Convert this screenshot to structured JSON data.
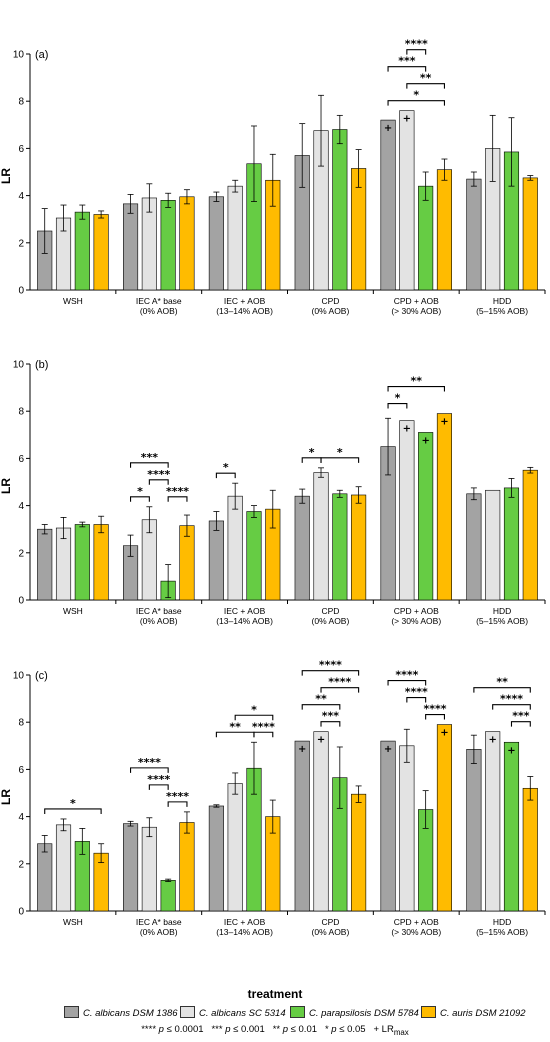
{
  "colors": {
    "series": [
      "#a3a3a3",
      "#e3e3e3",
      "#66cc44",
      "#ffbb00"
    ]
  },
  "x_axis_title": "treatment",
  "legend": [
    {
      "name": "C. albicans DSM 1386",
      "color": "#a3a3a3"
    },
    {
      "name": "C. albicans SC 5314",
      "color": "#e3e3e3"
    },
    {
      "name": "C. parapsilosis DSM 5784",
      "color": "#66cc44"
    },
    {
      "name": "C. auris DSM 21092",
      "color": "#ffbb00"
    }
  ],
  "significance_legend": {
    "s4": "**** ",
    "s4_p": "p",
    "s4_v": " ≤ 0.0001",
    "s3": "*** ",
    "s3_p": "p",
    "s3_v": " ≤ 0.001",
    "s2": "** ",
    "s2_p": "p",
    "s2_v": " ≤ 0.01",
    "s1": "* ",
    "s1_p": "p",
    "s1_v": " ≤ 0.05",
    "lr": "+ LR",
    "lr_sub": "max"
  },
  "chart_data": [
    {
      "panel": "(a)",
      "type": "bar",
      "ylabel": "LR",
      "ylim": [
        0,
        10
      ],
      "yticks": [
        0,
        2,
        4,
        6,
        8,
        10
      ],
      "categories": [
        [
          "WSH"
        ],
        [
          "IEC A* base",
          "(0% AOB)"
        ],
        [
          "IEC + AOB",
          "(13–14% AOB)"
        ],
        [
          "CPD",
          "(0% AOB)"
        ],
        [
          "CPD + AOB",
          "(> 30% AOB)"
        ],
        [
          "HDD",
          "(5–15% AOB)"
        ]
      ],
      "series": [
        {
          "name": "C. albicans DSM 1386",
          "values": [
            2.5,
            3.65,
            3.95,
            5.7,
            7.2,
            4.7
          ],
          "errors": [
            0.95,
            0.4,
            0.2,
            1.35,
            0.0,
            0.3
          ]
        },
        {
          "name": "C. albicans SC 5314",
          "values": [
            3.05,
            3.9,
            4.4,
            6.75,
            7.6,
            6.0
          ],
          "errors": [
            0.55,
            0.6,
            0.25,
            1.5,
            0.0,
            1.4
          ]
        },
        {
          "name": "C. parapsilosis DSM 5784",
          "values": [
            3.3,
            3.8,
            5.35,
            6.8,
            4.4,
            5.85
          ],
          "errors": [
            0.3,
            0.3,
            1.6,
            0.6,
            0.6,
            1.45
          ]
        },
        {
          "name": "C. auris DSM 21092",
          "values": [
            3.2,
            3.95,
            4.65,
            5.15,
            5.1,
            4.75
          ],
          "errors": [
            0.15,
            0.3,
            1.1,
            0.8,
            0.45,
            0.1
          ]
        }
      ],
      "lr_max": [
        [
          4,
          0
        ],
        [
          4,
          1
        ]
      ],
      "brackets": [
        {
          "group": 4,
          "from": 0,
          "to": 3,
          "level": 0,
          "label": "*"
        },
        {
          "group": 4,
          "from": 1,
          "to": 3,
          "level": 1,
          "label": "**"
        },
        {
          "group": 4,
          "from": 0,
          "to": 2,
          "level": 2,
          "label": "***"
        },
        {
          "group": 4,
          "from": 1,
          "to": 2,
          "level": 3,
          "label": "****"
        }
      ]
    },
    {
      "panel": "(b)",
      "type": "bar",
      "ylabel": "LR",
      "ylim": [
        0,
        10
      ],
      "yticks": [
        0,
        2,
        4,
        6,
        8,
        10
      ],
      "categories": [
        [
          "WSH"
        ],
        [
          "IEC A* base",
          "(0% AOB)"
        ],
        [
          "IEC + AOB",
          "(13–14% AOB)"
        ],
        [
          "CPD",
          "(0% AOB)"
        ],
        [
          "CPD + AOB",
          "(> 30% AOB)"
        ],
        [
          "HDD",
          "(5–15% AOB)"
        ]
      ],
      "series": [
        {
          "name": "C. albicans DSM 1386",
          "values": [
            3.0,
            2.3,
            3.35,
            4.4,
            6.5,
            4.5
          ],
          "errors": [
            0.2,
            0.45,
            0.4,
            0.3,
            1.2,
            0.25
          ]
        },
        {
          "name": "C. albicans SC 5314",
          "values": [
            3.05,
            3.4,
            4.4,
            5.4,
            7.6,
            4.65
          ],
          "errors": [
            0.45,
            0.55,
            0.55,
            0.2,
            0.0,
            0.0
          ]
        },
        {
          "name": "C. parapsilosis DSM 5784",
          "values": [
            3.2,
            0.8,
            3.75,
            4.5,
            7.1,
            4.75
          ],
          "errors": [
            0.1,
            0.7,
            0.25,
            0.15,
            0.0,
            0.4
          ]
        },
        {
          "name": "C. auris DSM 21092",
          "values": [
            3.2,
            3.15,
            3.85,
            4.45,
            7.9,
            5.5
          ],
          "errors": [
            0.35,
            0.45,
            0.8,
            0.35,
            0.0,
            0.12
          ]
        }
      ],
      "lr_max": [
        [
          4,
          1
        ],
        [
          4,
          2
        ],
        [
          4,
          3
        ]
      ],
      "brackets": [
        {
          "group": 1,
          "from": 0,
          "to": 1,
          "level": 0,
          "label": "*"
        },
        {
          "group": 1,
          "from": 2,
          "to": 3,
          "level": 0,
          "label": "****"
        },
        {
          "group": 1,
          "from": 1,
          "to": 2,
          "level": 1,
          "label": "****"
        },
        {
          "group": 1,
          "from": 0,
          "to": 2,
          "level": 2,
          "label": "***"
        },
        {
          "group": 2,
          "from": 0,
          "to": 1,
          "level": 0,
          "label": "*"
        },
        {
          "group": 3,
          "from": 0,
          "to": 1,
          "level": 0,
          "label": "*"
        },
        {
          "group": 3,
          "from": 1,
          "to": 3,
          "level": 0,
          "label": "*"
        },
        {
          "group": 4,
          "from": 0,
          "to": 1,
          "level": 0,
          "label": "*"
        },
        {
          "group": 4,
          "from": 0,
          "to": 3,
          "level": 1,
          "label": "**"
        }
      ]
    },
    {
      "panel": "(c)",
      "type": "bar",
      "ylabel": "LR",
      "ylim": [
        0,
        10
      ],
      "yticks": [
        0,
        2,
        4,
        6,
        8,
        10
      ],
      "categories": [
        [
          "WSH"
        ],
        [
          "IEC A* base",
          "(0% AOB)"
        ],
        [
          "IEC + AOB",
          "(13–14% AOB)"
        ],
        [
          "CPD",
          "(0% AOB)"
        ],
        [
          "CPD + AOB",
          "(> 30% AOB)"
        ],
        [
          "HDD",
          "(5–15% AOB)"
        ]
      ],
      "series": [
        {
          "name": "C. albicans DSM 1386",
          "values": [
            2.85,
            3.7,
            4.45,
            7.2,
            7.2,
            6.85
          ],
          "errors": [
            0.35,
            0.1,
            0.05,
            0.0,
            0.0,
            0.6
          ]
        },
        {
          "name": "C. albicans SC 5314",
          "values": [
            3.65,
            3.55,
            5.4,
            7.6,
            7.0,
            7.6
          ],
          "errors": [
            0.25,
            0.4,
            0.45,
            0.0,
            0.7,
            0.0
          ]
        },
        {
          "name": "C. parapsilosis DSM 5784",
          "values": [
            2.95,
            1.3,
            6.05,
            5.65,
            4.3,
            7.15
          ],
          "errors": [
            0.55,
            0.05,
            1.1,
            1.3,
            0.8,
            0.0
          ]
        },
        {
          "name": "C. auris DSM 21092",
          "values": [
            2.45,
            3.75,
            4.0,
            4.95,
            7.9,
            5.2
          ],
          "errors": [
            0.4,
            0.45,
            0.7,
            0.35,
            0.0,
            0.5
          ]
        }
      ],
      "lr_max": [
        [
          3,
          0
        ],
        [
          3,
          1
        ],
        [
          4,
          0
        ],
        [
          4,
          3
        ],
        [
          5,
          1
        ],
        [
          5,
          2
        ]
      ],
      "brackets": [
        {
          "group": 0,
          "from": 0,
          "to": 3,
          "level": 0,
          "label": "*"
        },
        {
          "group": 1,
          "from": 2,
          "to": 3,
          "level": 0,
          "label": "****"
        },
        {
          "group": 1,
          "from": 1,
          "to": 2,
          "level": 1,
          "label": "****"
        },
        {
          "group": 1,
          "from": 0,
          "to": 2,
          "level": 2,
          "label": "****"
        },
        {
          "group": 2,
          "from": 0,
          "to": 2,
          "level": 0,
          "label": "**"
        },
        {
          "group": 2,
          "from": 2,
          "to": 3,
          "level": 0,
          "label": "****"
        },
        {
          "group": 2,
          "from": 1,
          "to": 3,
          "level": 1,
          "label": "*"
        },
        {
          "group": 3,
          "from": 1,
          "to": 2,
          "level": 0,
          "label": "***"
        },
        {
          "group": 3,
          "from": 0,
          "to": 2,
          "level": 1,
          "label": "**"
        },
        {
          "group": 3,
          "from": 1,
          "to": 3,
          "level": 2,
          "label": "****"
        },
        {
          "group": 3,
          "from": 0,
          "to": 3,
          "level": 3,
          "label": "****"
        },
        {
          "group": 4,
          "from": 2,
          "to": 3,
          "level": 0,
          "label": "****"
        },
        {
          "group": 4,
          "from": 1,
          "to": 2,
          "level": 1,
          "label": "****"
        },
        {
          "group": 4,
          "from": 0,
          "to": 2,
          "level": 2,
          "label": "****"
        },
        {
          "group": 5,
          "from": 2,
          "to": 3,
          "level": 0,
          "label": "***"
        },
        {
          "group": 5,
          "from": 1,
          "to": 3,
          "level": 1,
          "label": "****"
        },
        {
          "group": 5,
          "from": 0,
          "to": 3,
          "level": 2,
          "label": "**"
        }
      ]
    }
  ]
}
